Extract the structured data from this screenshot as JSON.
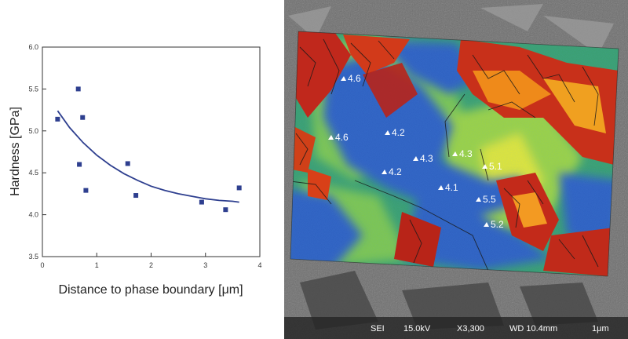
{
  "chart_data": {
    "type": "scatter",
    "xlabel": "Distance to phase boundary [μm]",
    "ylabel": "Hardness [GPa]",
    "xlim": [
      0,
      4
    ],
    "ylim": [
      3.5,
      6.0
    ],
    "xticks": [
      "0",
      "1",
      "2",
      "3",
      "4"
    ],
    "yticks": [
      "3.5",
      "4.0",
      "4.5",
      "5.0",
      "5.5",
      "6.0"
    ],
    "grid": false,
    "series": [
      {
        "marker": "square",
        "color": "#2e3f8f",
        "x": [
          0.28,
          0.66,
          0.68,
          0.74,
          0.8,
          1.57,
          1.72,
          2.93,
          3.37,
          3.62
        ],
        "y": [
          5.14,
          5.5,
          4.6,
          5.16,
          4.29,
          4.61,
          4.23,
          4.15,
          4.06,
          4.32
        ]
      }
    ],
    "fit_curve": {
      "color": "#2e3f8f",
      "x": [
        0.28,
        0.5,
        0.75,
        1.0,
        1.25,
        1.5,
        1.75,
        2.0,
        2.25,
        2.5,
        2.75,
        3.0,
        3.25,
        3.5,
        3.62
      ],
      "y": [
        5.24,
        5.04,
        4.86,
        4.71,
        4.59,
        4.49,
        4.41,
        4.34,
        4.29,
        4.25,
        4.22,
        4.19,
        4.17,
        4.16,
        4.15
      ]
    }
  },
  "micrograph": {
    "labels": [
      "4.6",
      "4.6",
      "4.2",
      "4.3",
      "4.3",
      "4.2",
      "5.1",
      "4.1",
      "5.5",
      "5.2"
    ],
    "footer": {
      "detector": "SEI",
      "voltage": "15.0kV",
      "magnification": "X3,300",
      "working_distance": "WD 10.4mm",
      "scale": "1μm"
    }
  }
}
